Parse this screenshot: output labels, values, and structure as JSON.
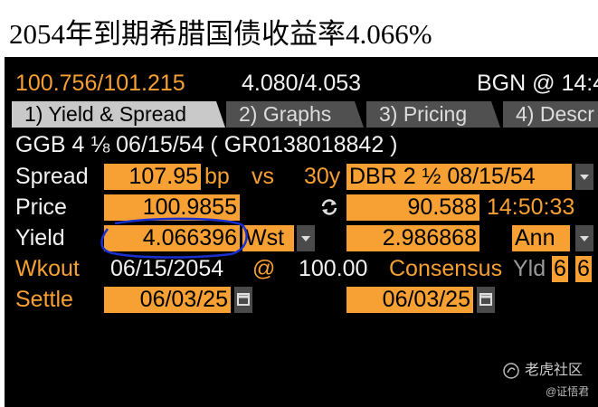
{
  "title": "2054年到期希腊国债收益率4.066%",
  "quote": {
    "bid_ask": "100.756/101.215",
    "yields": "4.080/4.053",
    "source": "BGN @ 14:4"
  },
  "tabs": [
    "1) Yield & Spread",
    "2) Graphs",
    "3) Pricing",
    "4) Descr"
  ],
  "security": "GGB 4 ⅛ 06/15/54 ( GR0138018842 )",
  "spread": {
    "label": "Spread",
    "value": "107.95",
    "unit": "bp",
    "vs": "vs",
    "tenor": "30y",
    "benchmark": "DBR 2 ½ 08/15/54"
  },
  "price": {
    "label": "Price",
    "value": "100.9855",
    "benchmark_value": "90.588",
    "time": "14:50:33"
  },
  "yield": {
    "label": "Yield",
    "value": "4.066396",
    "type": "Wst",
    "benchmark_value": "2.986868",
    "convention": "Ann"
  },
  "workout": {
    "label": "Wkout",
    "date": "06/15/2054",
    "at": "@",
    "price": "100.00",
    "consensus": "Consensus",
    "yld": "Yld",
    "boxes": [
      "6",
      "6"
    ]
  },
  "settle": {
    "label": "Settle",
    "date": "06/03/25",
    "benchmark_date": "06/03/25"
  },
  "watermark": {
    "brand": "老虎社区",
    "author": "@证悟君"
  }
}
